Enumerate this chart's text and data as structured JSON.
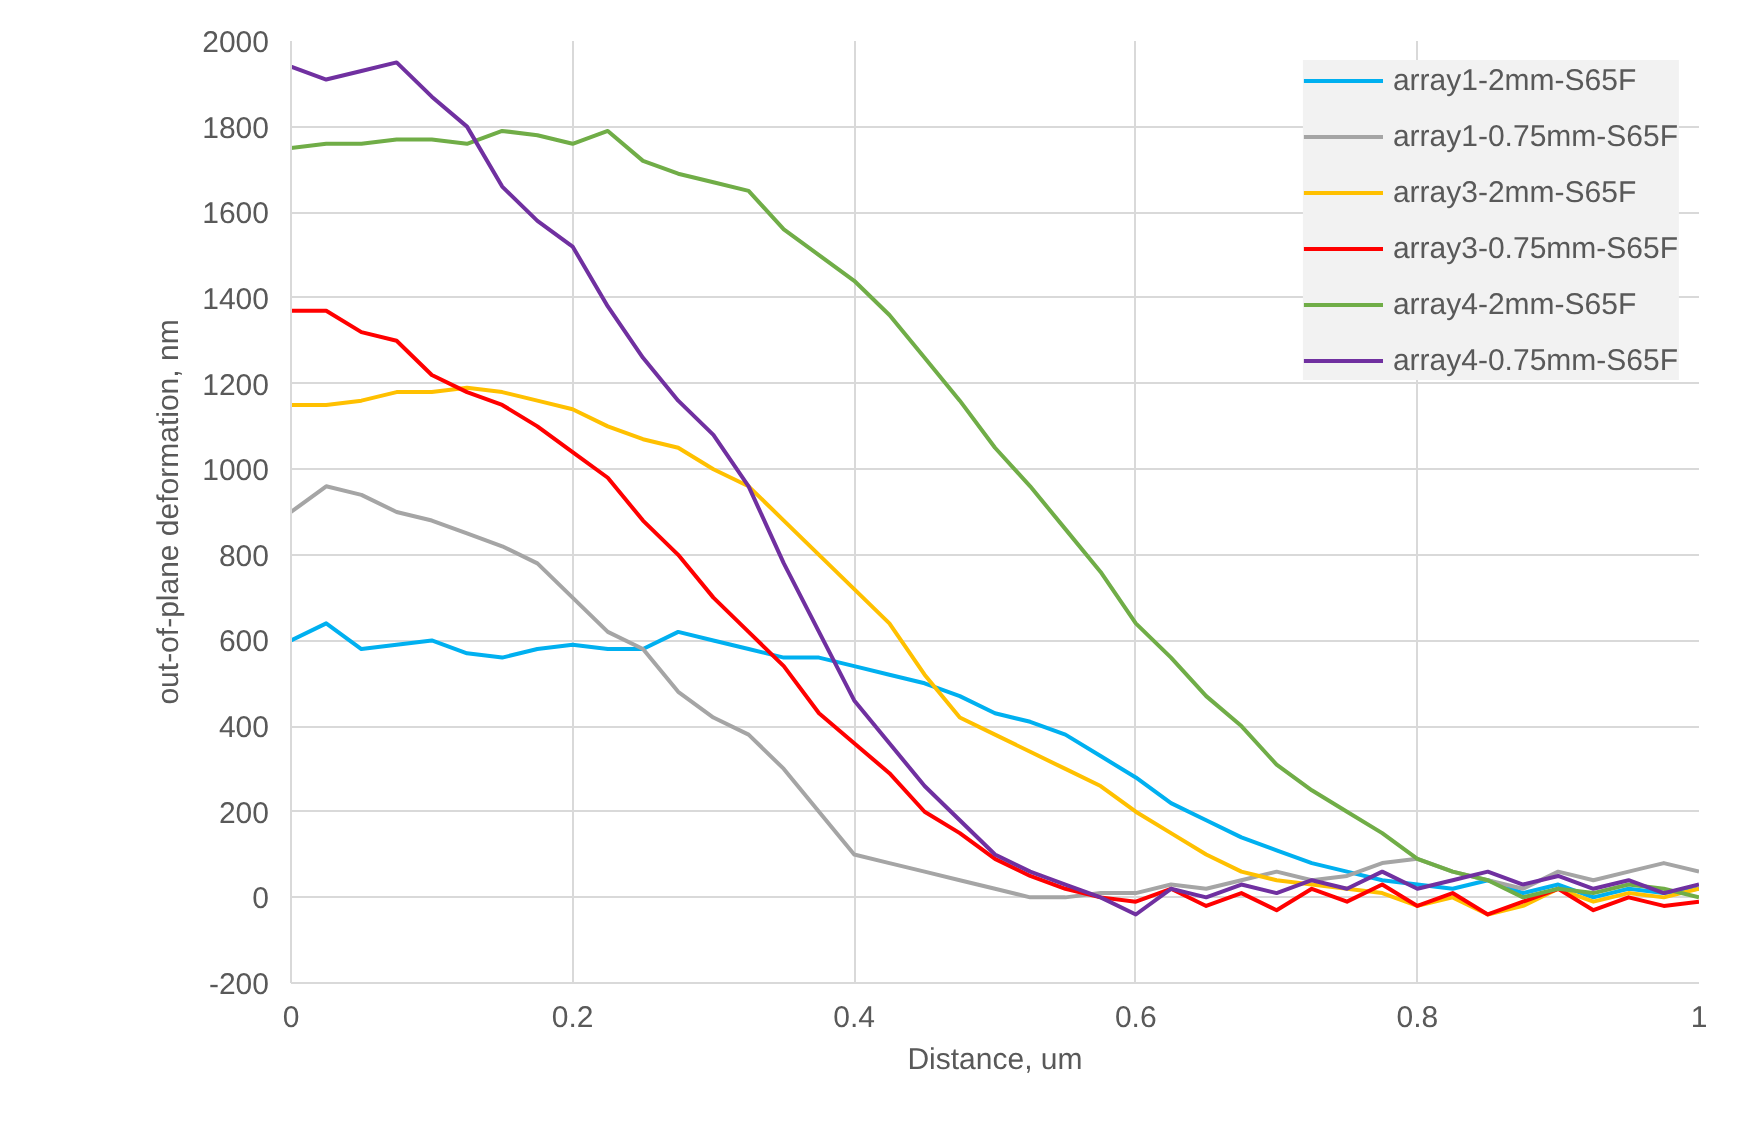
{
  "chart_data": {
    "type": "line",
    "xlabel": "Distance, um",
    "ylabel": "out-of-plane deformation, nm",
    "x": [
      0,
      0.025,
      0.05,
      0.075,
      0.1,
      0.125,
      0.15,
      0.175,
      0.2,
      0.225,
      0.25,
      0.275,
      0.3,
      0.325,
      0.35,
      0.375,
      0.4,
      0.425,
      0.45,
      0.475,
      0.5,
      0.525,
      0.55,
      0.575,
      0.6,
      0.625,
      0.65,
      0.675,
      0.7,
      0.725,
      0.75,
      0.775,
      0.8,
      0.825,
      0.85,
      0.875,
      0.9,
      0.925,
      0.95,
      0.975,
      1
    ],
    "series": [
      {
        "name": "array1-2mm-S65F",
        "color": "#00b0f0",
        "values": [
          600,
          640,
          580,
          590,
          600,
          570,
          560,
          580,
          590,
          580,
          580,
          620,
          600,
          580,
          560,
          560,
          540,
          520,
          500,
          470,
          430,
          410,
          380,
          330,
          280,
          220,
          180,
          140,
          110,
          80,
          60,
          40,
          30,
          20,
          40,
          10,
          30,
          0,
          20,
          10,
          20
        ]
      },
      {
        "name": "array1-0.75mm-S65F",
        "color": "#a5a5a5",
        "values": [
          900,
          960,
          940,
          900,
          880,
          850,
          820,
          780,
          700,
          620,
          580,
          480,
          420,
          380,
          300,
          200,
          100,
          80,
          60,
          40,
          20,
          0,
          0,
          10,
          10,
          30,
          20,
          40,
          60,
          40,
          50,
          80,
          90,
          60,
          40,
          20,
          60,
          40,
          60,
          80,
          60
        ]
      },
      {
        "name": "array3-2mm-S65F",
        "color": "#ffc000",
        "values": [
          1150,
          1150,
          1160,
          1180,
          1180,
          1190,
          1180,
          1160,
          1140,
          1100,
          1070,
          1050,
          1000,
          960,
          880,
          800,
          720,
          640,
          520,
          420,
          380,
          340,
          300,
          260,
          200,
          150,
          100,
          60,
          40,
          30,
          20,
          10,
          -20,
          0,
          -40,
          -20,
          20,
          -10,
          10,
          0,
          20
        ]
      },
      {
        "name": "array3-0.75mm-S65F",
        "color": "#ff0000",
        "values": [
          1370,
          1370,
          1320,
          1300,
          1220,
          1180,
          1150,
          1100,
          1040,
          980,
          880,
          800,
          700,
          620,
          540,
          430,
          360,
          290,
          200,
          150,
          90,
          50,
          20,
          0,
          -10,
          20,
          -20,
          10,
          -30,
          20,
          -10,
          30,
          -20,
          10,
          -40,
          -10,
          20,
          -30,
          0,
          -20,
          -10
        ]
      },
      {
        "name": "array4-2mm-S65F",
        "color": "#70ad47",
        "values": [
          1750,
          1760,
          1760,
          1770,
          1770,
          1760,
          1790,
          1780,
          1760,
          1790,
          1720,
          1690,
          1670,
          1650,
          1560,
          1500,
          1440,
          1360,
          1260,
          1160,
          1050,
          960,
          860,
          760,
          640,
          560,
          470,
          400,
          310,
          250,
          200,
          150,
          90,
          60,
          40,
          0,
          20,
          10,
          30,
          20,
          0
        ]
      },
      {
        "name": "array4-0.75mm-S65F",
        "color": "#7030a0",
        "values": [
          1940,
          1910,
          1930,
          1950,
          1870,
          1800,
          1660,
          1580,
          1520,
          1380,
          1260,
          1160,
          1080,
          960,
          780,
          620,
          460,
          360,
          260,
          180,
          100,
          60,
          30,
          0,
          -40,
          20,
          0,
          30,
          10,
          40,
          20,
          60,
          20,
          40,
          60,
          30,
          50,
          20,
          40,
          10,
          30
        ]
      }
    ],
    "xlim": [
      0,
      1
    ],
    "xticks": [
      0,
      0.2,
      0.4,
      0.6,
      0.8,
      1
    ],
    "ylim": [
      -200,
      2000
    ],
    "yticks": [
      -200,
      0,
      200,
      400,
      600,
      800,
      1000,
      1200,
      1400,
      1600,
      1800,
      2000
    ],
    "grid": true,
    "legend": "top right",
    "marker": "none",
    "line_style": "solid"
  }
}
